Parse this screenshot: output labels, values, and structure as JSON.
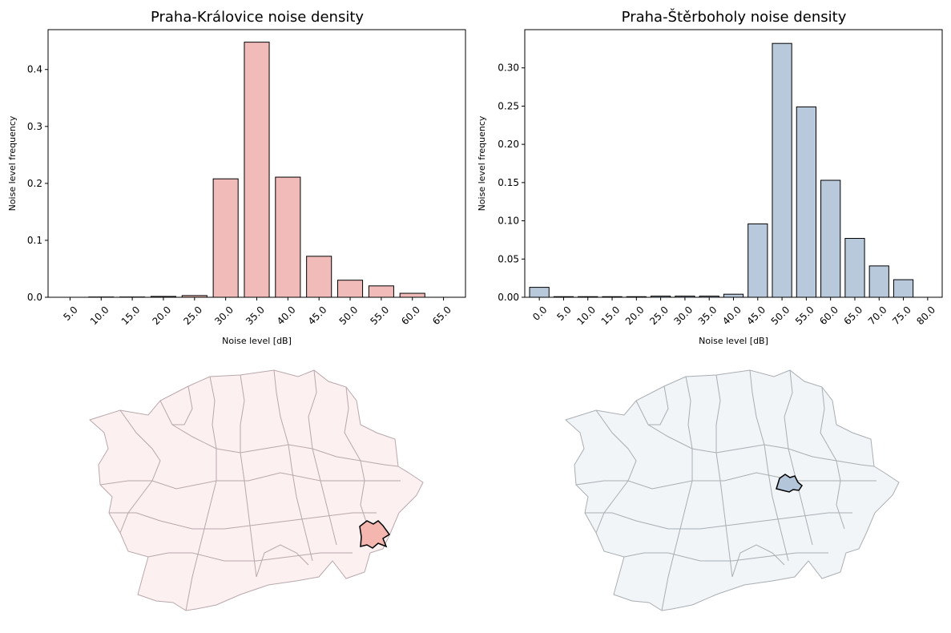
{
  "chart_data": [
    {
      "type": "bar",
      "title": "Praha-Královice noise density",
      "xlabel": "Noise level [dB]",
      "ylabel": "Noise level frequency",
      "categories": [
        "5.0",
        "10.0",
        "15.0",
        "20.0",
        "25.0",
        "30.0",
        "35.0",
        "40.0",
        "45.0",
        "50.0",
        "55.0",
        "60.0",
        "65.0"
      ],
      "values": [
        0.0,
        0.0005,
        0.0005,
        0.0015,
        0.003,
        0.208,
        0.448,
        0.211,
        0.072,
        0.03,
        0.02,
        0.007,
        0.0
      ],
      "ylim": [
        0,
        0.47
      ],
      "yticks": [
        0.0,
        0.1,
        0.2,
        0.3,
        0.4
      ],
      "ytick_labels": [
        "0.0",
        "0.1",
        "0.2",
        "0.3",
        "0.4"
      ],
      "bar_color": "#f0bbb8",
      "grid": false
    },
    {
      "type": "bar",
      "title": "Praha-Štěrboholy noise density",
      "xlabel": "Noise level [dB]",
      "ylabel": "Noise level frequency",
      "categories": [
        "0.0",
        "5.0",
        "10.0",
        "15.0",
        "20.0",
        "25.0",
        "30.0",
        "35.0",
        "40.0",
        "45.0",
        "50.0",
        "55.0",
        "60.0",
        "65.0",
        "70.0",
        "75.0",
        "80.0"
      ],
      "values": [
        0.013,
        0.0008,
        0.0008,
        0.0008,
        0.0008,
        0.0015,
        0.0015,
        0.0015,
        0.004,
        0.096,
        0.332,
        0.249,
        0.153,
        0.077,
        0.041,
        0.023,
        0.0
      ],
      "ylim": [
        0,
        0.35
      ],
      "yticks": [
        0.0,
        0.05,
        0.1,
        0.15,
        0.2,
        0.25,
        0.3
      ],
      "ytick_labels": [
        "0.00",
        "0.05",
        "0.10",
        "0.15",
        "0.20",
        "0.25",
        "0.30"
      ],
      "bar_color": "#b8c9db",
      "grid": false
    }
  ],
  "maps": [
    {
      "district": "Praha-Královice",
      "fill_color": "#fdf0f0",
      "highlight_color": "#f6b6b0",
      "border_color": "#b8a8ab"
    },
    {
      "district": "Praha-Štěrboholy",
      "fill_color": "#f1f5f8",
      "highlight_color": "#b3c5d8",
      "border_color": "#a9aeb3"
    }
  ]
}
